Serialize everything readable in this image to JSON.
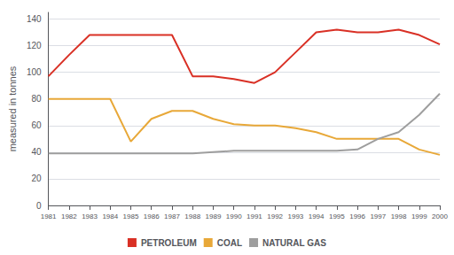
{
  "chart_data": {
    "type": "line",
    "ylabel": "measured in tonnes",
    "x": [
      1981,
      1982,
      1983,
      1984,
      1985,
      1986,
      1987,
      1988,
      1989,
      1990,
      1991,
      1992,
      1993,
      1994,
      1995,
      1996,
      1997,
      1998,
      1999,
      2000
    ],
    "xlim": [
      1981,
      2000
    ],
    "xticks": [
      1981,
      1982,
      1983,
      1984,
      1985,
      1986,
      1987,
      1988,
      1989,
      1990,
      1991,
      1992,
      1993,
      1994,
      1995,
      1996,
      1997,
      1998,
      1999,
      2000
    ],
    "ylim": [
      0,
      145
    ],
    "yticks": [
      0,
      20,
      40,
      60,
      80,
      100,
      120,
      140
    ],
    "grid": true,
    "legend": "bottom",
    "series": [
      {
        "name": "PETROLEUM",
        "color": "#d93025",
        "values": [
          97,
          113,
          128,
          128,
          128,
          128,
          128,
          97,
          97,
          95,
          92,
          100,
          115,
          130,
          132,
          130,
          130,
          132,
          128,
          121
        ]
      },
      {
        "name": "COAL",
        "color": "#e8a838",
        "values": [
          80,
          80,
          80,
          80,
          48,
          65,
          71,
          71,
          65,
          61,
          60,
          60,
          58,
          55,
          50,
          50,
          50,
          50,
          42,
          38
        ]
      },
      {
        "name": "NATURAL GAS",
        "color": "#9e9e9e",
        "values": [
          39,
          39,
          39,
          39,
          39,
          39,
          39,
          39,
          40,
          41,
          41,
          41,
          41,
          41,
          41,
          42,
          50,
          55,
          68,
          84
        ]
      }
    ]
  }
}
